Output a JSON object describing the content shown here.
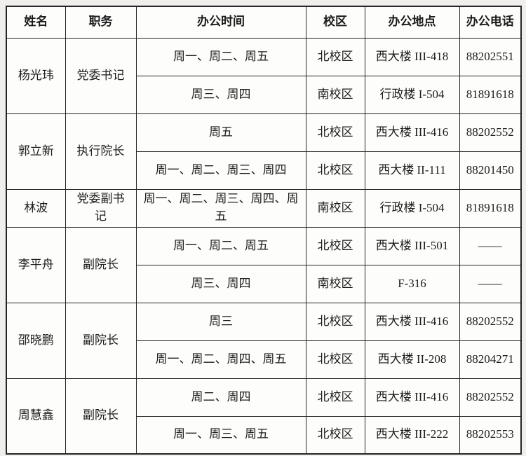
{
  "colors": {
    "page_background": "#f0efeb",
    "cell_background": "#fdfdfb",
    "border": "#262626",
    "text": "#1c1c1c"
  },
  "table": {
    "headers": [
      "姓名",
      "职务",
      "办公时间",
      "校区",
      "办公地点",
      "办公电话"
    ],
    "rows": [
      {
        "name": "杨光玮",
        "title": "党委书记",
        "schedules": [
          {
            "time": "周一、周二、周五",
            "campus": "北校区",
            "location": "西大楼 III-418",
            "phone": "88202551"
          },
          {
            "time": "周三、周四",
            "campus": "南校区",
            "location": "行政楼 I-504",
            "phone": "81891618"
          }
        ]
      },
      {
        "name": "郭立新",
        "title": "执行院长",
        "schedules": [
          {
            "time": "周五",
            "campus": "北校区",
            "location": "西大楼 III-416",
            "phone": "88202552"
          },
          {
            "time": "周一、周二、周三、周四",
            "campus": "北校区",
            "location": "西大楼 II-111",
            "phone": "88201450"
          }
        ]
      },
      {
        "name": "林波",
        "title": "党委副书记",
        "schedules": [
          {
            "time": "周一、周二、周三、周四、周五",
            "campus": "南校区",
            "location": "行政楼 I-504",
            "phone": "81891618"
          }
        ]
      },
      {
        "name": "李平舟",
        "title": "副院长",
        "schedules": [
          {
            "time": "周一、周二、周五",
            "campus": "北校区",
            "location": "西大楼 III-501",
            "phone": "——"
          },
          {
            "time": "周三、周四",
            "campus": "南校区",
            "location": "F-316",
            "phone": "——"
          }
        ]
      },
      {
        "name": "邵晓鹏",
        "title": "副院长",
        "schedules": [
          {
            "time": "周三",
            "campus": "北校区",
            "location": "西大楼 III-416",
            "phone": "88202552"
          },
          {
            "time": "周一、周二、周四、周五",
            "campus": "北校区",
            "location": "西大楼 II-208",
            "phone": "88204271"
          }
        ]
      },
      {
        "name": "周慧鑫",
        "title": "副院长",
        "schedules": [
          {
            "time": "周二、周四",
            "campus": "北校区",
            "location": "西大楼 III-416",
            "phone": "88202552"
          },
          {
            "time": "周一、周三、周五",
            "campus": "北校区",
            "location": "西大楼 III-222",
            "phone": "88202553"
          }
        ]
      }
    ]
  }
}
